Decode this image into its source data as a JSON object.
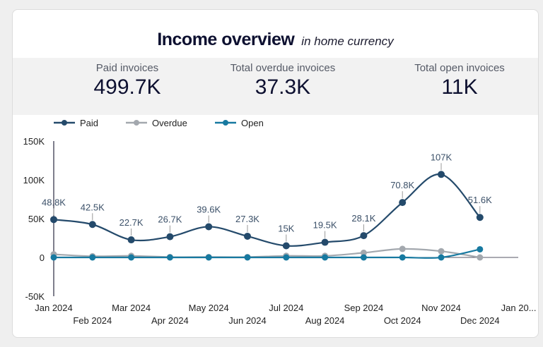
{
  "header": {
    "title": "Income overview",
    "subtitle": "in home currency"
  },
  "kpis": [
    {
      "label": "Paid invoices",
      "value": "499.7K"
    },
    {
      "label": "Total overdue invoices",
      "value": "37.3K"
    },
    {
      "label": "Total open invoices",
      "value": "11K"
    }
  ],
  "chart_data": {
    "type": "line",
    "x": [
      "Jan 2024",
      "Feb 2024",
      "Mar 2024",
      "Apr 2024",
      "May 2024",
      "Jun 2024",
      "Jul 2024",
      "Aug 2024",
      "Sep 2024",
      "Oct 2024",
      "Nov 2024",
      "Dec 2024"
    ],
    "x_ticks": [
      "Jan 2024",
      "Feb 2024",
      "Mar 2024",
      "Apr 2024",
      "May 2024",
      "Jun 2024",
      "Jul 2024",
      "Aug 2024",
      "Sep 2024",
      "Oct 2024",
      "Nov 2024",
      "Dec 2024",
      "Jan 20..."
    ],
    "y_ticks": [
      "150K",
      "100K",
      "50K",
      "0",
      "-50K"
    ],
    "y_tick_values": [
      150,
      100,
      50,
      0,
      -50
    ],
    "ylim": [
      -50,
      150
    ],
    "y_unit": "K",
    "legend_position": "top-left",
    "series": [
      {
        "name": "Paid",
        "color": "#244a6b",
        "values": [
          48.8,
          42.5,
          22.7,
          26.7,
          39.6,
          27.3,
          15,
          19.5,
          28.1,
          70.8,
          107,
          51.6
        ],
        "labels": [
          "48.8K",
          "42.5K",
          "22.7K",
          "26.7K",
          "39.6K",
          "27.3K",
          "15K",
          "19.5K",
          "28.1K",
          "70.8K",
          "107K",
          "51.6K"
        ]
      },
      {
        "name": "Overdue",
        "color": "#a3a8ae",
        "values": [
          4,
          1.5,
          2,
          0.5,
          0.5,
          0.5,
          2,
          2,
          6,
          11,
          8,
          0
        ]
      },
      {
        "name": "Open",
        "color": "#1779a0",
        "values": [
          0,
          0,
          0,
          0,
          0,
          0,
          0,
          0,
          0,
          0,
          0,
          10.5
        ]
      }
    ]
  }
}
